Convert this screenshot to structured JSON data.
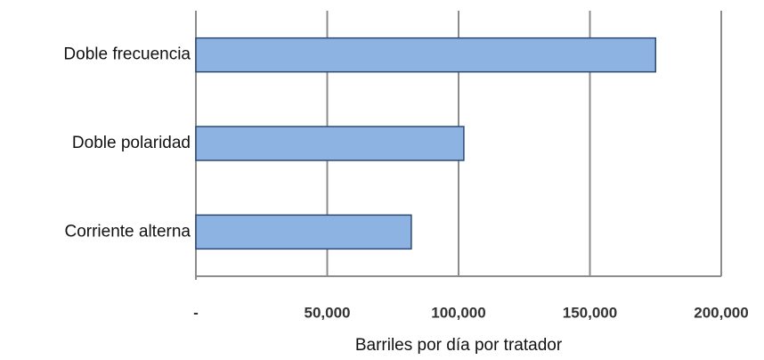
{
  "chart_data": {
    "type": "hbar",
    "categories": [
      "Doble frecuencia",
      "Doble polaridad",
      "Corriente alterna"
    ],
    "values": [
      175000,
      102000,
      82000
    ],
    "color": "#8db3e2",
    "xlabel": "Barriles por día por tratador",
    "xlim": [
      0,
      200000
    ],
    "xticks": [
      {
        "value": 0,
        "label": "-"
      },
      {
        "value": 50000,
        "label": "50,000"
      },
      {
        "value": 100000,
        "label": "100,000"
      },
      {
        "value": 150000,
        "label": "150,000"
      },
      {
        "value": 200000,
        "label": "200,000"
      }
    ],
    "grid": true
  }
}
